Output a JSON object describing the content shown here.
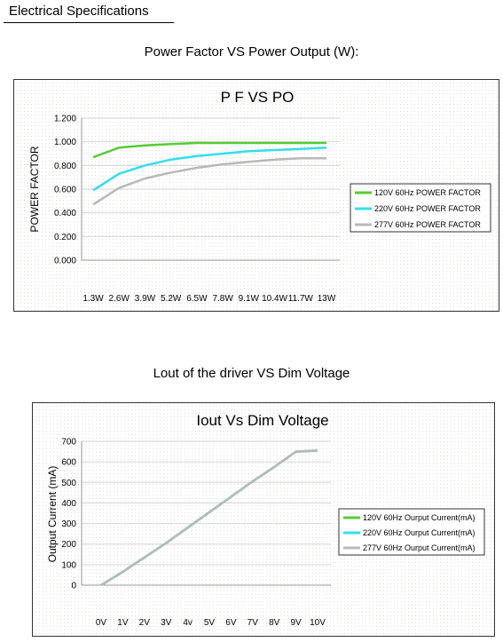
{
  "page": {
    "section_title": "Electrical Specifications"
  },
  "charts": [
    {
      "heading": "Power Factor VS Power Output (W):"
    },
    {
      "heading": "Lout of the driver VS Dim Voltage"
    }
  ],
  "chart_data": [
    {
      "type": "line",
      "title": "P F VS PO",
      "xlabel": "",
      "ylabel": "POWER FACTOR",
      "categories": [
        "1.3W",
        "2.6W",
        "3.9W",
        "5.2W",
        "6.5W",
        "7.8W",
        "9.1W",
        "10.4W",
        "11.7W",
        "13W"
      ],
      "ylim": [
        0,
        1.2
      ],
      "yticks": [
        "0.000",
        "0.200",
        "0.400",
        "0.600",
        "0.800",
        "1.000",
        "1.200"
      ],
      "grid": true,
      "legend_position": "right",
      "series": [
        {
          "name": "120V 60Hz  POWER FACTOR",
          "color": "#55cc33",
          "values": [
            0.87,
            0.95,
            0.97,
            0.98,
            0.99,
            0.99,
            0.99,
            0.99,
            0.99,
            0.99
          ]
        },
        {
          "name": "220V 60Hz POWER FACTOR",
          "color": "#33ddee",
          "values": [
            0.59,
            0.73,
            0.8,
            0.85,
            0.88,
            0.9,
            0.92,
            0.93,
            0.94,
            0.95
          ]
        },
        {
          "name": "277V 60Hz  POWER FACTOR",
          "color": "#b8b8b8",
          "values": [
            0.47,
            0.61,
            0.69,
            0.74,
            0.78,
            0.81,
            0.83,
            0.85,
            0.86,
            0.86
          ]
        }
      ]
    },
    {
      "type": "line",
      "title": "Iout Vs Dim Voltage",
      "xlabel": "",
      "ylabel": "Output Current (mA)",
      "categories": [
        "0V",
        "1V",
        "2V",
        "3V",
        "4v",
        "5V",
        "6V",
        "7V",
        "8V",
        "9V",
        "10V"
      ],
      "ylim": [
        0,
        700
      ],
      "yticks": [
        "0",
        "100",
        "200",
        "300",
        "400",
        "500",
        "600",
        "700"
      ],
      "grid": true,
      "legend_position": "right",
      "series": [
        {
          "name": "120V 60Hz  Ourput Current(mA)",
          "color": "#55cc33",
          "values": [
            0,
            65,
            135,
            205,
            280,
            355,
            430,
            505,
            575,
            650,
            655
          ]
        },
        {
          "name": "220V 60Hz  Ourput Current(mA)",
          "color": "#33ddee",
          "values": [
            0,
            65,
            135,
            205,
            280,
            355,
            430,
            505,
            575,
            650,
            655
          ]
        },
        {
          "name": "277V 60Hz  Ourput Current(mA)",
          "color": "#b8b8b8",
          "values": [
            0,
            65,
            135,
            205,
            280,
            355,
            430,
            505,
            575,
            650,
            655
          ]
        }
      ]
    }
  ]
}
